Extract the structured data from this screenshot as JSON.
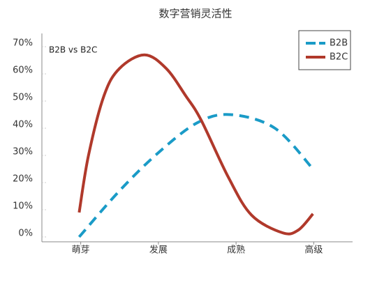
{
  "chart_data": {
    "type": "line",
    "title": "数字营销灵活性",
    "annotation": "B2B vs B2C",
    "xlim": [
      0,
      4
    ],
    "xticks": [
      {
        "value": 0.5,
        "label": "萌芽"
      },
      {
        "value": 1.5,
        "label": "发展"
      },
      {
        "value": 2.5,
        "label": "成熟"
      },
      {
        "value": 3.5,
        "label": "高级"
      }
    ],
    "ylim": [
      0,
      70
    ],
    "yticks": [
      {
        "value": 0,
        "label": "0%"
      },
      {
        "value": 10,
        "label": "10%"
      },
      {
        "value": 20,
        "label": "20%"
      },
      {
        "value": 30,
        "label": "30%"
      },
      {
        "value": 40,
        "label": "40%"
      },
      {
        "value": 50,
        "label": "50%"
      },
      {
        "value": 60,
        "label": "60%"
      },
      {
        "value": 70,
        "label": "70%"
      }
    ],
    "legend": "top-right",
    "series": [
      {
        "name": "B2B",
        "color": "#1a9bc7",
        "dashed": true,
        "x": [
          0.48,
          1.0,
          1.5,
          2.0,
          2.43,
          3.0,
          3.49
        ],
        "values": [
          0,
          17,
          31,
          42,
          45,
          40,
          25
        ]
      },
      {
        "name": "B2C",
        "color": "#b0392b",
        "dashed": false,
        "x": [
          0.48,
          0.6,
          0.8,
          1.0,
          1.32,
          1.6,
          1.85,
          2.05,
          2.4,
          2.7,
          3.1,
          3.3,
          3.49
        ],
        "values": [
          9,
          30,
          52,
          62,
          67,
          62,
          52,
          43,
          22,
          8,
          1.5,
          2.5,
          8.5
        ]
      }
    ]
  }
}
